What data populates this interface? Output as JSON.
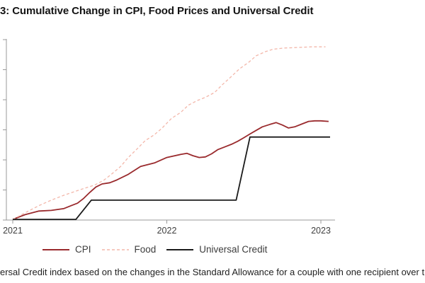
{
  "page": {
    "title": "3: Cumulative Change in CPI, Food Prices and Universal Credit",
    "caption": "ersal Credit index based on the changes in the Standard Allowance for a couple with one recipient over the age"
  },
  "colors": {
    "cpi": "#9a2a2d",
    "food": "#f3b7aa",
    "universal_credit": "#1b1b1b",
    "axis": "#999999",
    "tick_text": "#404040"
  },
  "legend": {
    "items": [
      {
        "label": "CPI",
        "color": "#9a2a2d",
        "style": "solid"
      },
      {
        "label": "Food",
        "color": "#f3b7aa",
        "style": "dashed"
      },
      {
        "label": "Universal Credit",
        "color": "#1b1b1b",
        "style": "solid"
      }
    ]
  },
  "chart_data": {
    "type": "line",
    "title": "3: Cumulative Change in CPI, Food Prices and Universal Credit",
    "xlabel": "",
    "ylabel": "",
    "xlim": [
      2021.0,
      2023.09
    ],
    "ylim": [
      0,
      30
    ],
    "grid": false,
    "legend_position": "bottom",
    "x_ticks": [
      {
        "label": "2021",
        "year": 2021
      },
      {
        "label": "2022",
        "year": 2022
      },
      {
        "label": "2023",
        "year": 2023
      }
    ],
    "y_axis": {
      "tick_values": [
        0,
        5,
        10,
        15,
        20,
        25,
        30
      ],
      "labels_visible": false,
      "unit": "cumulative change, % (estimated; labels cropped off-screen)"
    },
    "series": [
      {
        "name": "CPI",
        "color": "#9a2a2d",
        "dash": "none",
        "width": 1.8,
        "points": [
          [
            2021.0,
            0.1
          ],
          [
            2021.08,
            0.9
          ],
          [
            2021.17,
            1.5
          ],
          [
            2021.25,
            1.6
          ],
          [
            2021.33,
            1.9
          ],
          [
            2021.38,
            2.4
          ],
          [
            2021.42,
            2.8
          ],
          [
            2021.46,
            3.6
          ],
          [
            2021.5,
            4.6
          ],
          [
            2021.54,
            5.5
          ],
          [
            2021.58,
            6.0
          ],
          [
            2021.63,
            6.2
          ],
          [
            2021.67,
            6.6
          ],
          [
            2021.75,
            7.6
          ],
          [
            2021.83,
            8.9
          ],
          [
            2021.92,
            9.5
          ],
          [
            2022.0,
            10.4
          ],
          [
            2022.09,
            10.9
          ],
          [
            2022.13,
            11.1
          ],
          [
            2022.17,
            10.7
          ],
          [
            2022.21,
            10.4
          ],
          [
            2022.25,
            10.5
          ],
          [
            2022.29,
            11.0
          ],
          [
            2022.33,
            11.7
          ],
          [
            2022.38,
            12.2
          ],
          [
            2022.42,
            12.6
          ],
          [
            2022.46,
            13.1
          ],
          [
            2022.5,
            13.7
          ],
          [
            2022.54,
            14.3
          ],
          [
            2022.58,
            14.9
          ],
          [
            2022.62,
            15.5
          ],
          [
            2022.67,
            15.9
          ],
          [
            2022.71,
            16.2
          ],
          [
            2022.75,
            15.8
          ],
          [
            2022.79,
            15.3
          ],
          [
            2022.83,
            15.5
          ],
          [
            2022.88,
            16.0
          ],
          [
            2022.92,
            16.4
          ],
          [
            2022.96,
            16.5
          ],
          [
            2023.0,
            16.5
          ],
          [
            2023.05,
            16.4
          ]
        ]
      },
      {
        "name": "Food",
        "color": "#f3b7aa",
        "dash": "4 3",
        "width": 1.3,
        "points": [
          [
            2021.0,
            0.1
          ],
          [
            2021.08,
            1.2
          ],
          [
            2021.17,
            2.4
          ],
          [
            2021.25,
            3.3
          ],
          [
            2021.33,
            4.1
          ],
          [
            2021.42,
            4.9
          ],
          [
            2021.48,
            5.4
          ],
          [
            2021.53,
            5.8
          ],
          [
            2021.59,
            6.6
          ],
          [
            2021.64,
            7.6
          ],
          [
            2021.7,
            8.9
          ],
          [
            2021.75,
            10.4
          ],
          [
            2021.81,
            11.9
          ],
          [
            2021.86,
            13.2
          ],
          [
            2021.92,
            14.2
          ],
          [
            2021.97,
            15.3
          ],
          [
            2022.03,
            16.9
          ],
          [
            2022.09,
            17.9
          ],
          [
            2022.14,
            19.1
          ],
          [
            2022.2,
            19.9
          ],
          [
            2022.25,
            20.4
          ],
          [
            2022.31,
            21.2
          ],
          [
            2022.36,
            22.5
          ],
          [
            2022.42,
            23.9
          ],
          [
            2022.47,
            25.1
          ],
          [
            2022.53,
            26.2
          ],
          [
            2022.58,
            27.3
          ],
          [
            2022.64,
            28.0
          ],
          [
            2022.69,
            28.4
          ],
          [
            2022.76,
            28.6
          ],
          [
            2022.85,
            28.7
          ],
          [
            2022.94,
            28.8
          ],
          [
            2023.03,
            28.8
          ]
        ]
      },
      {
        "name": "Universal Credit",
        "color": "#1b1b1b",
        "dash": "none",
        "width": 1.8,
        "points": [
          [
            2021.0,
            0.1
          ],
          [
            2021.41,
            0.1
          ],
          [
            2021.51,
            3.3
          ],
          [
            2022.45,
            3.3
          ],
          [
            2022.54,
            13.8
          ],
          [
            2023.06,
            13.8
          ]
        ]
      }
    ]
  }
}
